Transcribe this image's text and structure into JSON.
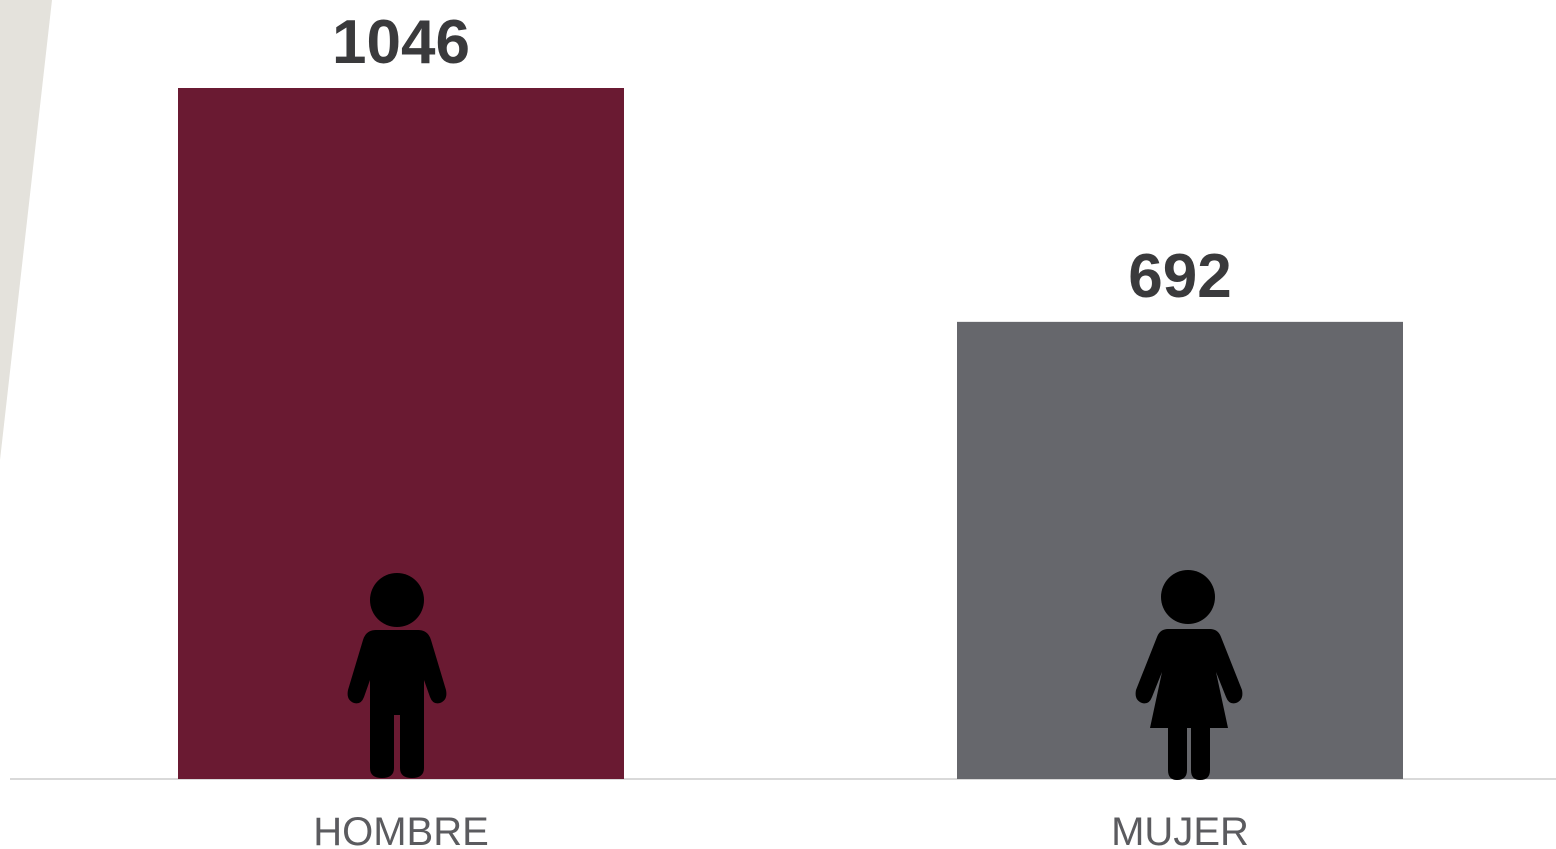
{
  "chart_data": {
    "type": "bar",
    "categories": [
      "HOMBRE",
      "MUJER"
    ],
    "values": [
      1046,
      692
    ],
    "colors": [
      "#6a1a32",
      "#66676c"
    ]
  }
}
